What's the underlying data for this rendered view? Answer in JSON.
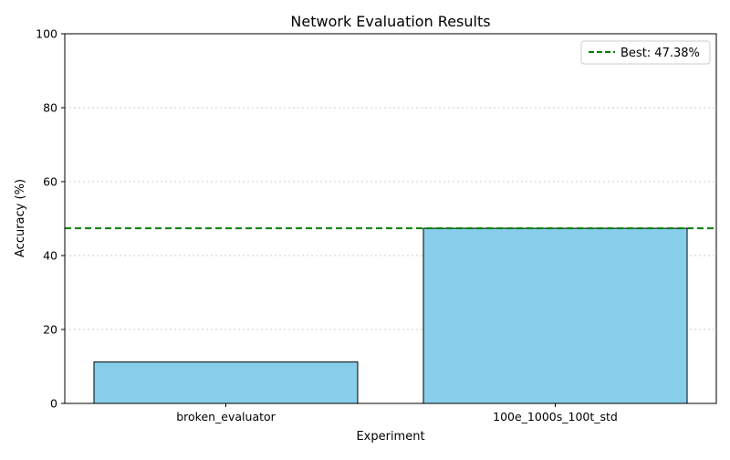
{
  "chart_data": {
    "type": "bar",
    "title": "Network Evaluation Results",
    "xlabel": "Experiment",
    "ylabel": "Accuracy (%)",
    "categories": [
      "broken_evaluator",
      "100e_1000s_100t_std"
    ],
    "values": [
      11.2,
      47.38
    ],
    "ylim": [
      0,
      100
    ],
    "yticks": [
      0,
      20,
      40,
      60,
      80,
      100
    ],
    "grid": "y-dotted",
    "bar_color": "#87ceeb",
    "bar_edge_color": "#000000",
    "reference_line": {
      "value": 47.38,
      "label": "Best: 47.38%",
      "color": "#008000",
      "style": "dashed"
    },
    "legend": {
      "placement": "top-right",
      "entries": [
        "Best: 47.38%"
      ]
    }
  }
}
